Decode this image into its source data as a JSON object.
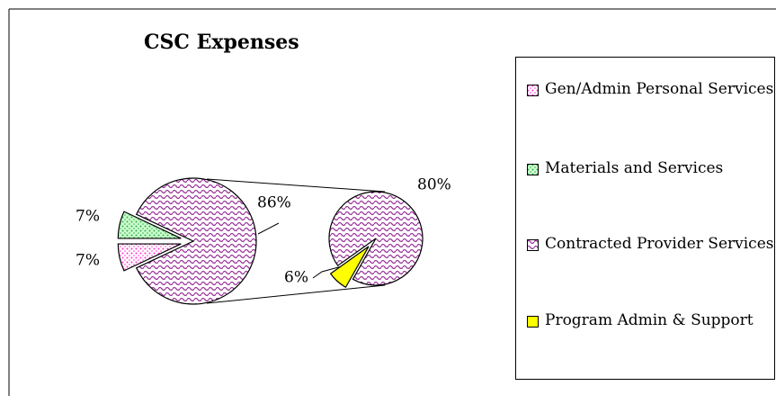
{
  "chart_data": {
    "type": "pie-of-pie",
    "title": "CSC Expenses",
    "primary": {
      "categories": [
        "Gen/Admin Personal Services",
        "Materials and Services"
      ],
      "values": [
        7,
        7
      ],
      "value_labels": [
        "7%",
        "7%"
      ],
      "colors": [
        "#ff33cc",
        "#33aa55"
      ],
      "patterns": [
        "dots",
        "dots"
      ]
    },
    "other_value": 86,
    "other_label": "86%",
    "secondary": {
      "categories": [
        "Contracted Provider Services",
        "Program Admin & Support"
      ],
      "values": [
        80,
        6
      ],
      "value_labels": [
        "80%",
        "6%"
      ],
      "colors": [
        "#993399",
        "#ffff00"
      ],
      "patterns": [
        "wave",
        "solid"
      ]
    }
  }
}
